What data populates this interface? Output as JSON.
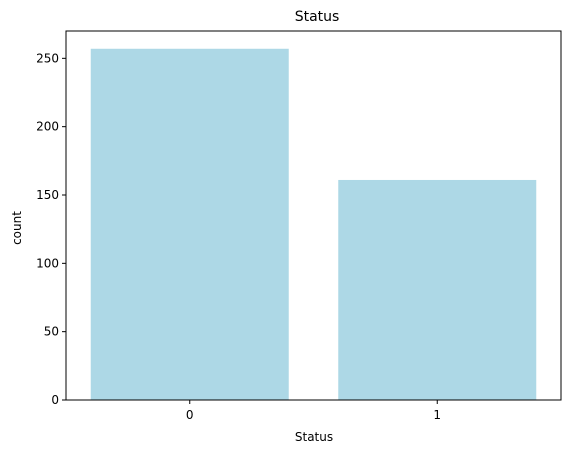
{
  "chart_data": {
    "type": "bar",
    "title": "Status",
    "xlabel": "Status",
    "ylabel": "count",
    "categories": [
      "0",
      "1"
    ],
    "values": [
      257,
      161
    ],
    "ylim": [
      0,
      270
    ],
    "yticks": [
      0,
      50,
      100,
      150,
      200,
      250
    ],
    "grid": false,
    "bar_color": "#add8e6"
  }
}
